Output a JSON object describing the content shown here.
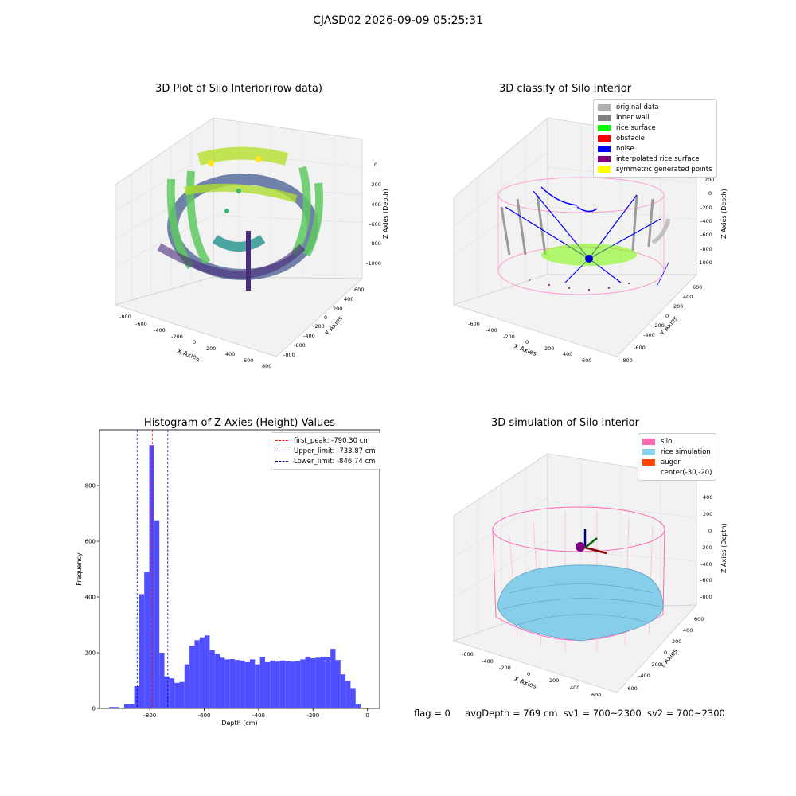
{
  "suptitle": "CJASD02 2026-09-09 05:25:31",
  "panels": {
    "raw": {
      "title": "3D Plot of Silo Interior(row data)",
      "xlabel": "X Axies",
      "ylabel": "Y Axies",
      "zlabel": "Z Axies (Depth)",
      "xticks": [
        "-800",
        "-600",
        "-400",
        "-200",
        "0",
        "200",
        "400",
        "600",
        "800"
      ],
      "yticks": [
        "600",
        "400",
        "200",
        "0",
        "-200",
        "-400",
        "-600",
        "-800"
      ],
      "zticks": [
        "0",
        "-200",
        "-400",
        "-600",
        "-800",
        "-1000"
      ]
    },
    "classify": {
      "title": "3D classify of Silo Interior",
      "xlabel": "X Axies",
      "ylabel": "Y Axies",
      "zlabel": "Z Axies (Depth)",
      "xticks": [
        "-600",
        "-400",
        "-200",
        "0",
        "200",
        "400",
        "600"
      ],
      "yticks": [
        "600",
        "400",
        "200",
        "0",
        "-200",
        "-400",
        "-600",
        "-800"
      ],
      "zticks": [
        "400",
        "200",
        "0",
        "-200",
        "-400",
        "-600",
        "-800",
        "-1000"
      ],
      "legend": [
        {
          "label": "original data",
          "color": "#b0b0b0"
        },
        {
          "label": "inner wall",
          "color": "#808080"
        },
        {
          "label": "rice surface",
          "color": "#00ff00"
        },
        {
          "label": "obstacle",
          "color": "#ff0000"
        },
        {
          "label": "noise",
          "color": "#0000ff"
        },
        {
          "label": "interpolated rice surface",
          "color": "#800080"
        },
        {
          "label": "symmetric generated points",
          "color": "#ffff00"
        }
      ]
    },
    "simulation": {
      "title": "3D simulation of Silo Interior",
      "xlabel": "X Axies",
      "ylabel": "Y Axies",
      "zlabel": "Z Axies (Depth)",
      "xticks": [
        "-600",
        "-400",
        "-200",
        "0",
        "200",
        "400",
        "600"
      ],
      "yticks": [
        "600",
        "400",
        "200",
        "0",
        "-200",
        "-400",
        "-600"
      ],
      "zticks": [
        "400",
        "200",
        "0",
        "-200",
        "-400",
        "-600",
        "-800"
      ],
      "legend": [
        {
          "label": "silo",
          "color": "#ff69b4"
        },
        {
          "label": "rice simulation",
          "color": "#87ceeb"
        },
        {
          "label": "auger",
          "color": "#ff4500"
        },
        {
          "label": "center(-30,-20)",
          "color": ""
        }
      ]
    }
  },
  "chart_data": {
    "type": "bar",
    "title": "Histogram of Z-Axies (Height) Values",
    "xlabel": "Depth (cm)",
    "ylabel": "Frequency",
    "xlim": [
      -985,
      45
    ],
    "ylim": [
      0,
      1000
    ],
    "xticks": [
      -800,
      -600,
      -400,
      -200,
      0
    ],
    "yticks": [
      0,
      200,
      400,
      600,
      800
    ],
    "bin_width": 18.5,
    "bin_starts": [
      -950,
      -931.5,
      -913,
      -894.5,
      -876,
      -857.5,
      -839,
      -820.5,
      -802,
      -783.5,
      -765,
      -746.5,
      -728,
      -709.5,
      -691,
      -672.5,
      -654,
      -635.5,
      -617,
      -598.5,
      -580,
      -561.5,
      -543,
      -524.5,
      -506,
      -487.5,
      -469,
      -450.5,
      -432,
      -413.5,
      -395,
      -376.5,
      -358,
      -339.5,
      -321,
      -302.5,
      -284,
      -265.5,
      -247,
      -228.5,
      -210,
      -191.5,
      -173,
      -154.5,
      -136,
      -117.5,
      -99,
      -80.5,
      -62,
      -43.5,
      -25,
      -6.5
    ],
    "values": [
      5,
      5,
      0,
      15,
      15,
      80,
      410,
      490,
      945,
      675,
      200,
      115,
      108,
      92,
      95,
      158,
      225,
      245,
      255,
      262,
      210,
      196,
      182,
      176,
      177,
      174,
      172,
      166,
      176,
      158,
      185,
      166,
      172,
      168,
      172,
      170,
      168,
      170,
      176,
      186,
      180,
      182,
      186,
      183,
      214,
      174,
      122,
      100,
      73,
      15,
      0,
      0
    ],
    "vlines": [
      {
        "label": "first_peak: -790.30 cm",
        "x": -790.3,
        "color": "#ff0000"
      },
      {
        "label": "Upper_limit: -733.87 cm",
        "x": -733.87,
        "color": "#0000aa"
      },
      {
        "label": "Lower_limit: -846.74 cm",
        "x": -846.74,
        "color": "#0000aa"
      }
    ]
  },
  "status": {
    "flag": "flag = 0",
    "avgdepth": "avgDepth = 769 cm",
    "sv1": "sv1 = 700~2300",
    "sv2": "sv2 = 700~2300"
  }
}
